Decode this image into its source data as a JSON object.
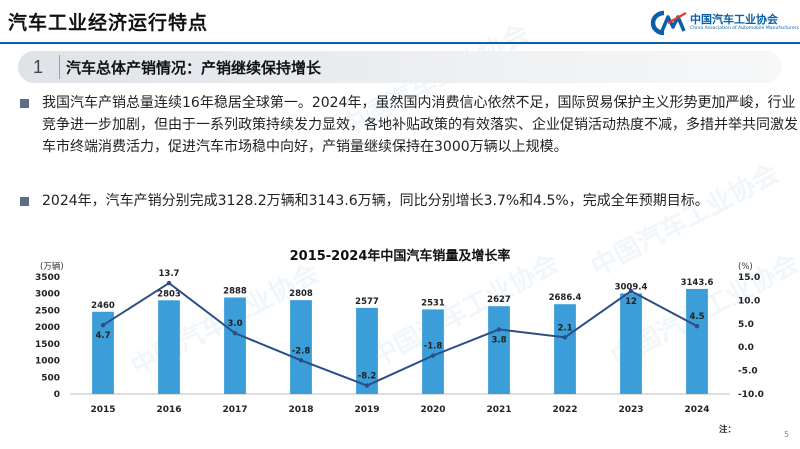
{
  "header": {
    "title": "汽车工业经济运行特点",
    "logo_cn": "中国汽车工业协会",
    "logo_en": "China Association of Automobile Manufacturers",
    "accent_color": "#0b5fa8"
  },
  "section": {
    "number": "1",
    "title": "汽车总体产销情况：产销继续保持增长"
  },
  "paragraphs": [
    "我国汽车产销总量连续16年稳居全球第一。2024年，虽然国内消费信心依然不足，国际贸易保护主义形势更加严峻，行业竞争进一步加剧，但由于一系列政策持续发力显效，各地补贴政策的有效落实、企业促销活动热度不减，多措并举共同激发车市终端消费活力，促进汽车市场稳中向好，产销量继续保持在3000万辆以上规模。",
    "2024年，汽车产销分别完成3128.2万辆和3143.6万辆，同比分别增长3.7%和4.5%，完成全年预期目标。"
  ],
  "watermark": "中国汽车工业协会",
  "note": "注：",
  "page_number": "5",
  "chart_data": {
    "type": "bar",
    "title": "2015-2024年中国汽车销量及增长率",
    "left_unit": "(万辆)",
    "right_unit": "(%)",
    "categories": [
      "2015",
      "2016",
      "2017",
      "2018",
      "2019",
      "2020",
      "2021",
      "2022",
      "2023",
      "2024"
    ],
    "series": [
      {
        "type": "bar",
        "axis": "left",
        "color": "#3c9ed8",
        "values": [
          2460,
          2803,
          2888,
          2808,
          2577,
          2531,
          2627,
          2686.4,
          3009.4,
          3143.6
        ],
        "labels": [
          "2460",
          "2803",
          "2888",
          "2808",
          "2577",
          "2531",
          "2627",
          "2686.4",
          "3009.4",
          "3143.6"
        ]
      },
      {
        "type": "line",
        "axis": "right",
        "color": "#2d4d86",
        "values": [
          4.7,
          13.7,
          3.0,
          -2.8,
          -8.2,
          -1.8,
          3.8,
          2.1,
          12,
          4.5
        ],
        "labels": [
          "4.7",
          "13.7",
          "3.0",
          "-2.8",
          "-8.2",
          "-1.8",
          "3.8",
          "2.1",
          "12",
          "4.5"
        ]
      }
    ],
    "ylim_left": [
      0,
      3500
    ],
    "ylim_right": [
      -10,
      15
    ],
    "left_ticks": [
      "0",
      "500",
      "1000",
      "1500",
      "2000",
      "2500",
      "3000",
      "3500"
    ],
    "right_ticks": [
      "-10.0",
      "-5.0",
      "0.0",
      "5.0",
      "10.0",
      "15.0"
    ],
    "grid": false,
    "legend": "none"
  }
}
